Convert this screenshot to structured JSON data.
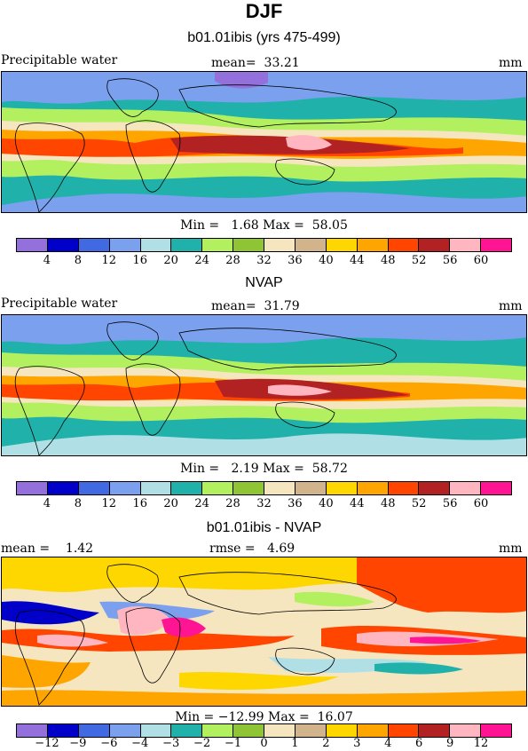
{
  "title": "DJF",
  "panels": [
    {
      "heading": "b01.01ibis (yrs 475-499)",
      "left_label": "Precipitable water",
      "center_label": "mean=  33.21",
      "right_label": "mm",
      "min_max": "Min =   1.68 Max =  58.05",
      "colorbar": {
        "ticks": [
          "4",
          "8",
          "12",
          "16",
          "20",
          "24",
          "28",
          "32",
          "36",
          "40",
          "44",
          "48",
          "52",
          "56",
          "60"
        ]
      }
    },
    {
      "heading": "NVAP",
      "left_label": "Precipitable water",
      "center_label": "mean=  31.79",
      "right_label": "mm",
      "min_max": "Min =   2.19 Max =  58.72",
      "colorbar": {
        "ticks": [
          "4",
          "8",
          "12",
          "16",
          "20",
          "24",
          "28",
          "32",
          "36",
          "40",
          "44",
          "48",
          "52",
          "56",
          "60"
        ]
      }
    },
    {
      "heading": "b01.01ibis - NVAP",
      "left_label": "mean =    1.42",
      "center_label": "rmse =   4.69",
      "right_label": "mm",
      "min_max": "Min = −12.99 Max =  16.07",
      "colorbar": {
        "ticks": [
          "−12",
          "−9",
          "−6",
          "−4",
          "−3",
          "−2",
          "−1",
          "0",
          "1",
          "2",
          "3",
          "4",
          "6",
          "9",
          "12"
        ]
      }
    }
  ],
  "palette": [
    "#9370db",
    "#0000c8",
    "#4169e1",
    "#7aa0ee",
    "#b0e0e6",
    "#20b2aa",
    "#b2f060",
    "#8fc435",
    "#f5e6c0",
    "#d2b48c",
    "#ffd700",
    "#ffa500",
    "#ff4500",
    "#b22222",
    "#ffb6c1",
    "#ff1493"
  ]
}
